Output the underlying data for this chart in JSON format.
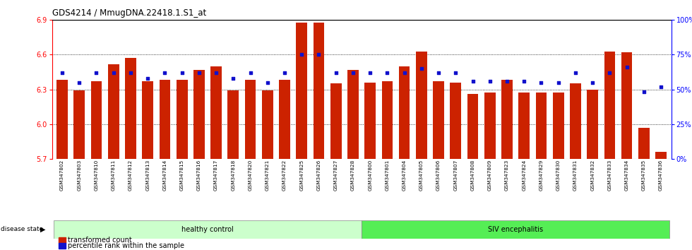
{
  "title": "GDS4214 / MmugDNA.22418.1.S1_at",
  "samples": [
    "GSM347802",
    "GSM347803",
    "GSM347810",
    "GSM347811",
    "GSM347812",
    "GSM347813",
    "GSM347814",
    "GSM347815",
    "GSM347816",
    "GSM347817",
    "GSM347818",
    "GSM347820",
    "GSM347821",
    "GSM347822",
    "GSM347825",
    "GSM347826",
    "GSM347827",
    "GSM347828",
    "GSM347800",
    "GSM347801",
    "GSM347804",
    "GSM347805",
    "GSM347806",
    "GSM347807",
    "GSM347808",
    "GSM347809",
    "GSM347823",
    "GSM347824",
    "GSM347829",
    "GSM347830",
    "GSM347831",
    "GSM347832",
    "GSM347833",
    "GSM347834",
    "GSM347835",
    "GSM347836"
  ],
  "bar_values": [
    6.38,
    6.29,
    6.37,
    6.52,
    6.57,
    6.37,
    6.38,
    6.38,
    6.47,
    6.5,
    6.29,
    6.38,
    6.29,
    6.38,
    6.88,
    6.88,
    6.35,
    6.47,
    6.36,
    6.37,
    6.5,
    6.63,
    6.37,
    6.36,
    6.26,
    6.27,
    6.38,
    6.27,
    6.27,
    6.27,
    6.35,
    6.3,
    6.63,
    6.62,
    5.97,
    5.76
  ],
  "percentile_values": [
    62,
    55,
    62,
    62,
    62,
    58,
    62,
    62,
    62,
    62,
    58,
    62,
    55,
    62,
    75,
    75,
    62,
    62,
    62,
    62,
    62,
    65,
    62,
    62,
    56,
    56,
    56,
    56,
    55,
    55,
    62,
    55,
    62,
    66,
    48,
    52
  ],
  "ylim_left": [
    5.7,
    6.9
  ],
  "ylim_right": [
    0,
    100
  ],
  "yticks_left": [
    5.7,
    6.0,
    6.3,
    6.6,
    6.9
  ],
  "yticks_right": [
    0,
    25,
    50,
    75,
    100
  ],
  "ytick_labels_right": [
    "0%",
    "25%",
    "50%",
    "75%",
    "100%"
  ],
  "bar_color": "#cc2200",
  "percentile_color": "#1111cc",
  "healthy_count": 18,
  "group1_label": "healthy control",
  "group2_label": "SIV encephalitis",
  "group1_color": "#ccffcc",
  "group2_color": "#55ee55",
  "disease_state_label": "disease state",
  "legend_bar_label": "transformed count",
  "legend_dot_label": "percentile rank within the sample"
}
